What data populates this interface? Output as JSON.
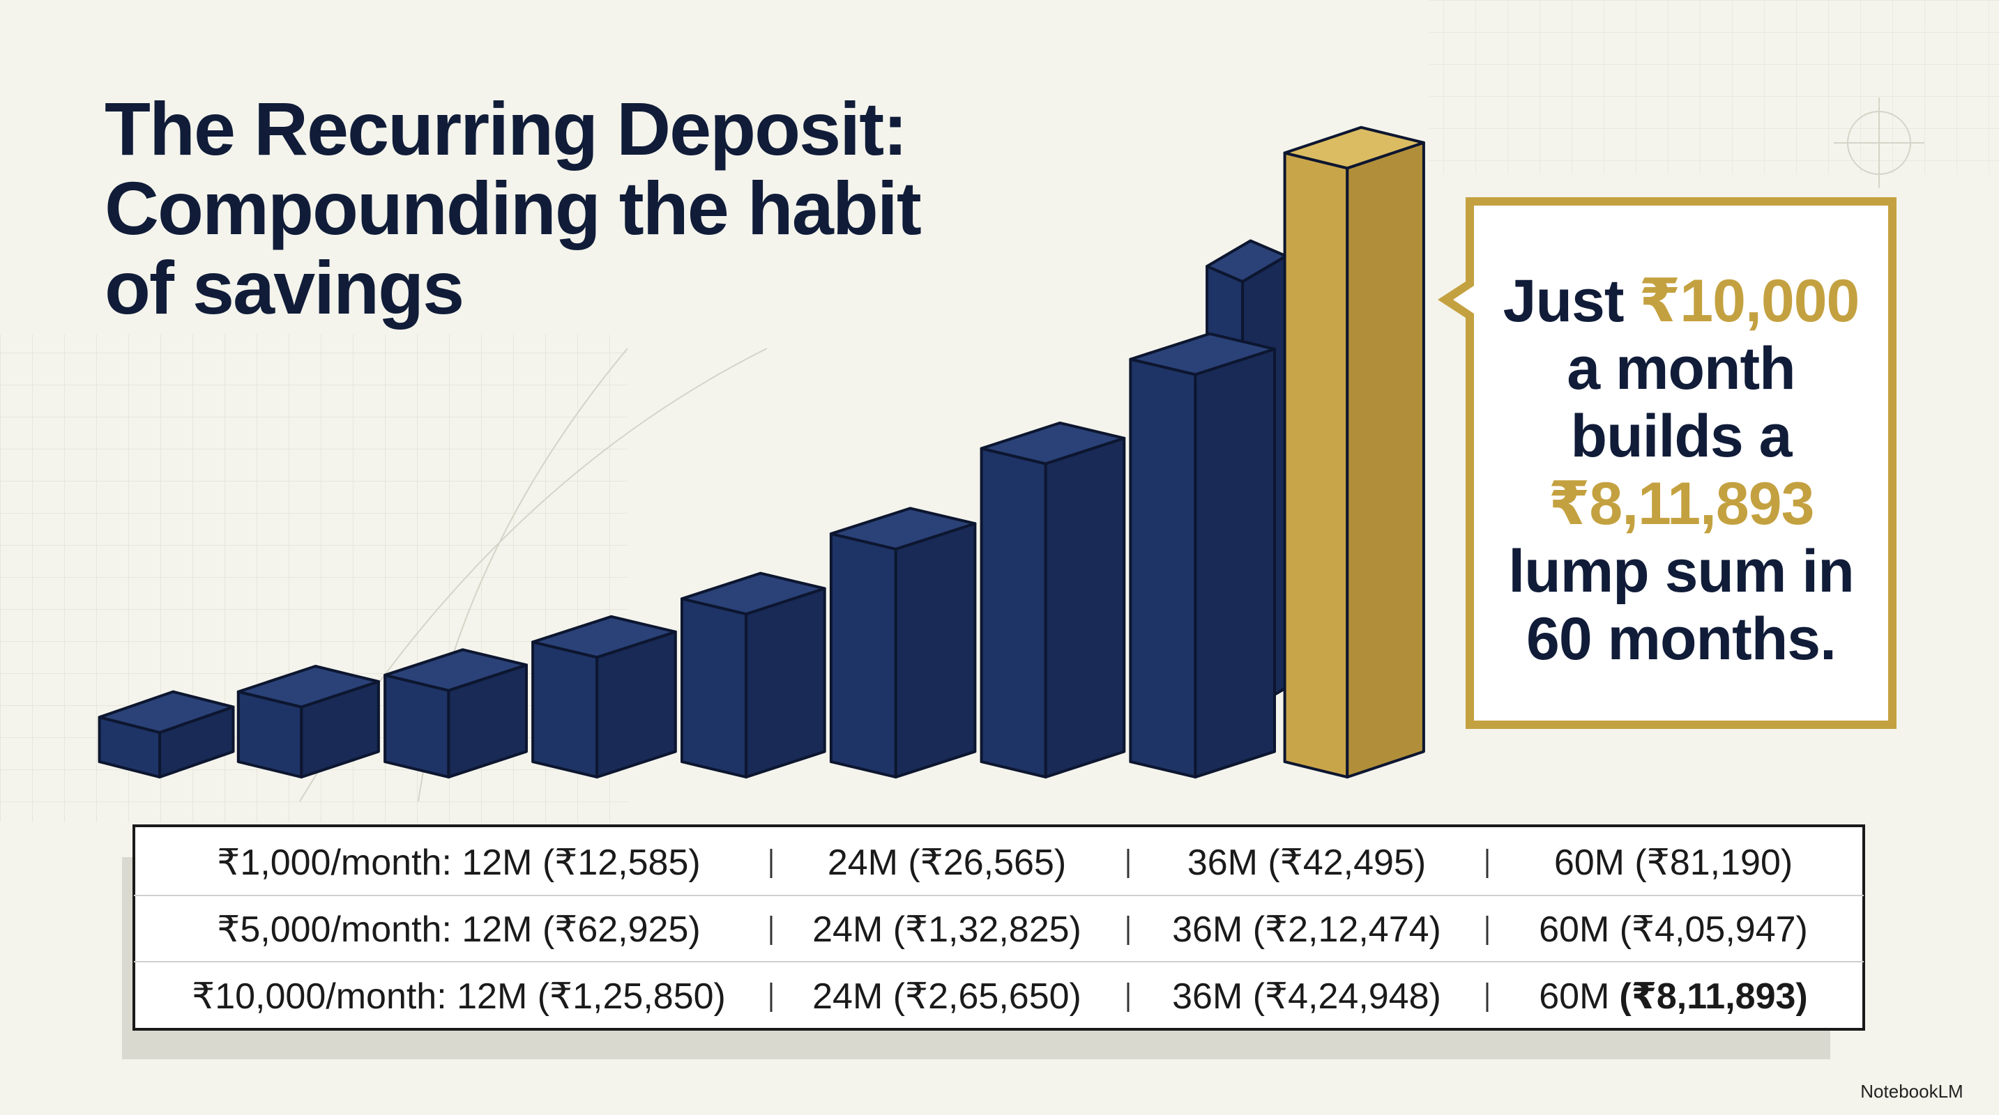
{
  "header": {
    "title_lines": [
      "The Recurring Deposit:",
      "Compounding the habit",
      "of savings"
    ]
  },
  "callout": {
    "lines": [
      [
        {
          "text": "Just"
        },
        {
          "text": "₹10,000",
          "color": "#c4a140"
        }
      ],
      [
        {
          "text": "a month"
        }
      ],
      [
        {
          "text": "builds a"
        }
      ],
      [
        {
          "text": "₹8,11,893",
          "color": "#c4a140"
        }
      ],
      [
        {
          "text": "lump sum in"
        }
      ],
      [
        {
          "text": "60 months."
        }
      ]
    ]
  },
  "table": {
    "rows": [
      [
        "₹1,000/month: 12M (₹12,585)",
        "24M (₹26,565)",
        "36M (₹42,495)",
        "60M (₹81,190)"
      ],
      [
        "₹5,000/month: 12M (₹62,925)",
        "24M (₹1,32,825)",
        "36M (₹2,12,474)",
        "60M (₹4,05,947)"
      ],
      [
        "₹10,000/month: 12M (₹1,25,850)",
        "24M (₹2,65,650)",
        "36M (₹4,24,948)",
        {
          "text": "60M",
          "emphasis": "(₹8,11,893)"
        }
      ]
    ]
  },
  "footer": {
    "brand": "NotebookLM"
  }
}
